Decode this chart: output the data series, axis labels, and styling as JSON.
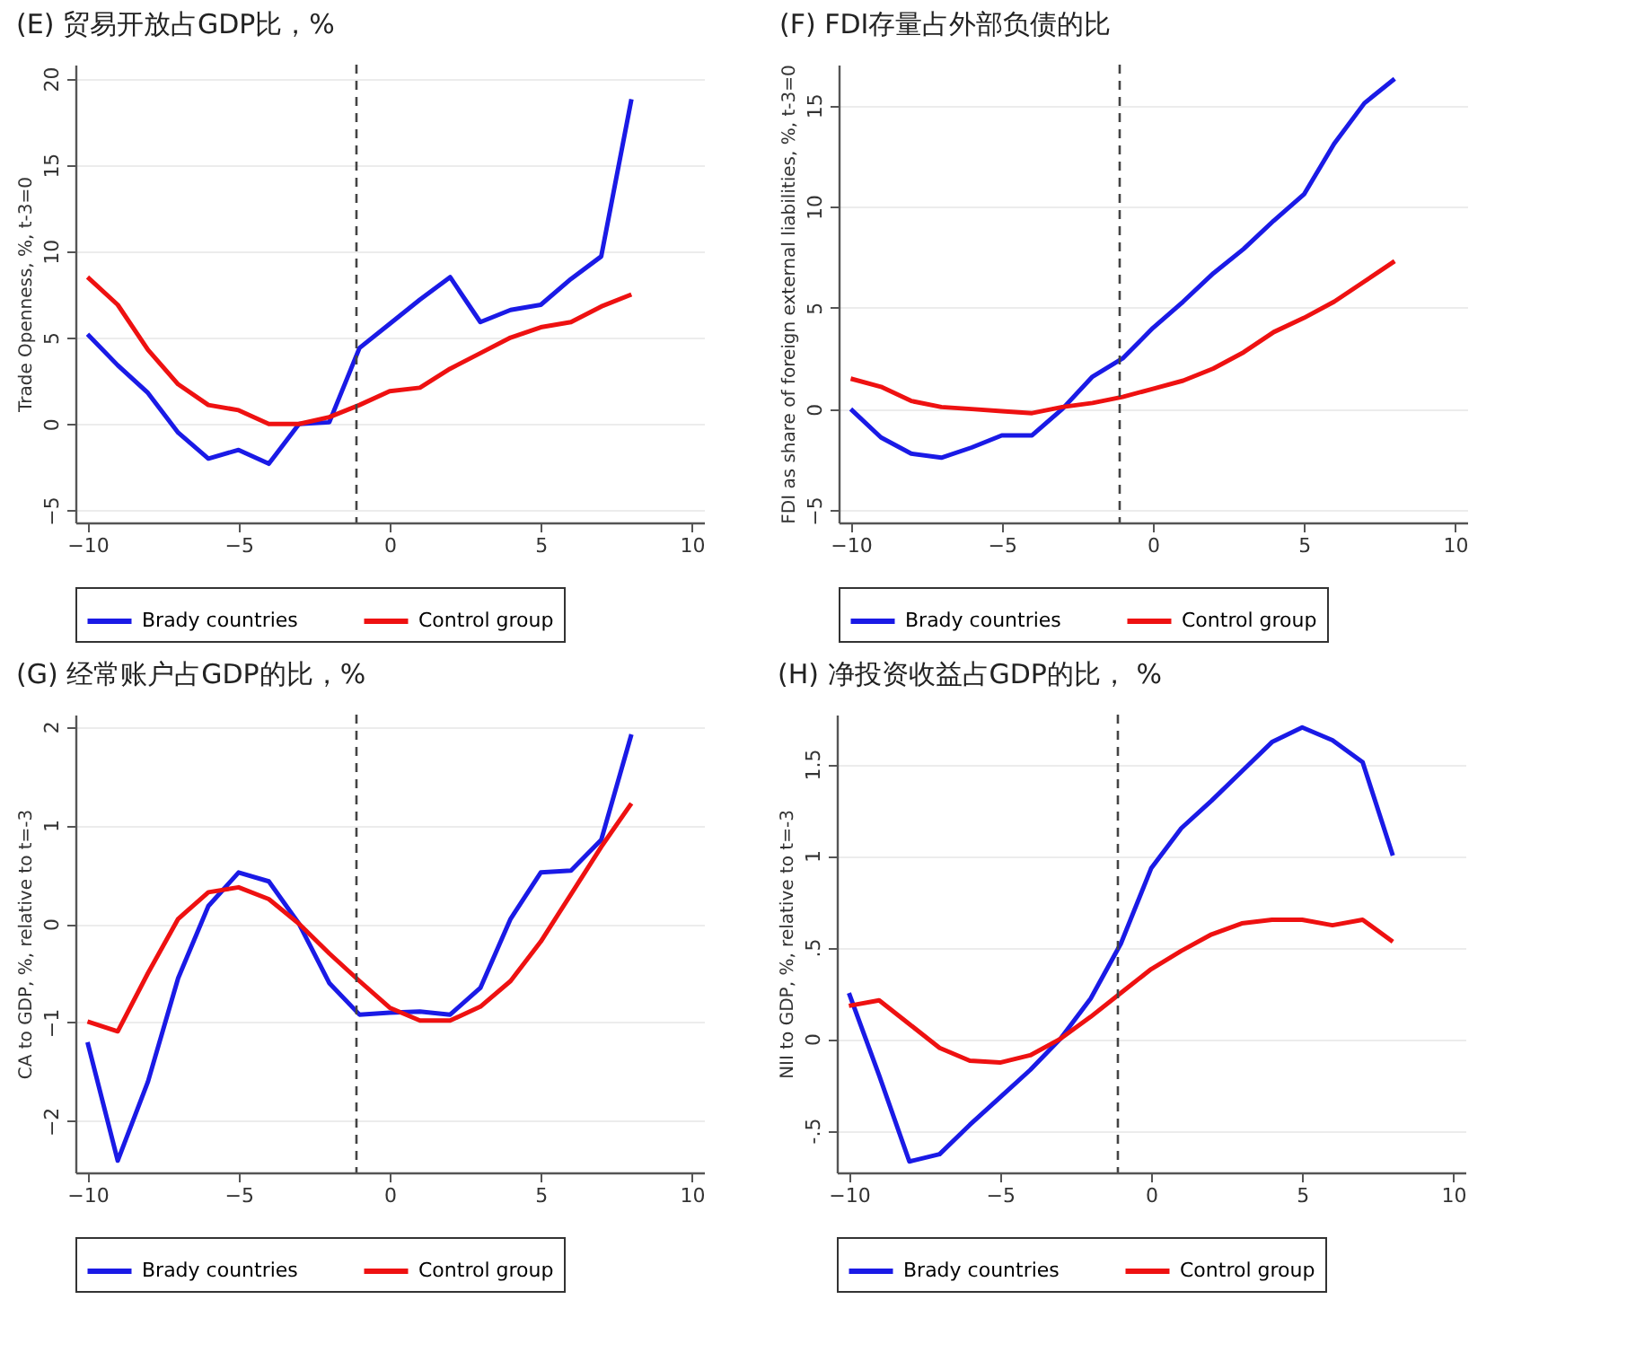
{
  "chart_data": [
    {
      "type": "line",
      "title": "(E) 贸易开放占GDP比，%",
      "ylabel": "Trade Openness, %, t-3=0",
      "x": [
        -10,
        -9,
        -8,
        -7,
        -6,
        -5,
        -4,
        -3,
        -2,
        -1,
        0,
        1,
        2,
        3,
        4,
        5,
        6,
        7,
        8
      ],
      "xlim": [
        -10.4,
        10.4
      ],
      "xticks": [
        -10,
        -5,
        0,
        5,
        10
      ],
      "ylim": [
        -5.7,
        20.8
      ],
      "yticks": [
        -5,
        0,
        5,
        10,
        15,
        20
      ],
      "grid": "y",
      "legend": "bottom",
      "series": [
        {
          "name": "Brady countries",
          "color": "#1a1ae6",
          "values": [
            5.2,
            3.4,
            1.8,
            -0.5,
            -2.0,
            -1.5,
            -2.3,
            0.0,
            0.1,
            4.4,
            5.8,
            7.2,
            8.5,
            5.9,
            6.6,
            6.9,
            8.4,
            9.7,
            18.8
          ]
        },
        {
          "name": "Control group",
          "color": "#ee1111",
          "values": [
            8.5,
            6.9,
            4.3,
            2.3,
            1.1,
            0.8,
            0.0,
            0.0,
            0.4,
            1.1,
            1.9,
            2.1,
            3.2,
            4.1,
            5.0,
            5.6,
            5.9,
            6.8,
            7.5
          ]
        }
      ],
      "ref_lines": [
        {
          "axis": "x",
          "value": -1.1,
          "label": null,
          "line_style": "dashed"
        }
      ]
    },
    {
      "type": "line",
      "title": "(F) FDI存量占外部负债的比",
      "ylabel": "FDI as share of foreign external liabilities, %, t-3=0",
      "x": [
        -10,
        -9,
        -8,
        -7,
        -6,
        -5,
        -4,
        -3,
        -2,
        -1,
        0,
        1,
        2,
        3,
        4,
        5,
        6,
        7,
        8
      ],
      "xlim": [
        -10.4,
        10.4
      ],
      "xticks": [
        -10,
        -5,
        0,
        5,
        10
      ],
      "ylim": [
        -5.6,
        17
      ],
      "yticks": [
        -5,
        0,
        5,
        10,
        15
      ],
      "grid": "y",
      "legend": "bottom",
      "series": [
        {
          "name": "Brady countries",
          "color": "#1a1ae6",
          "values": [
            0.0,
            -1.4,
            -2.2,
            -2.4,
            -1.9,
            -1.3,
            -1.3,
            0.0,
            1.6,
            2.5,
            4.0,
            5.3,
            6.7,
            7.9,
            9.3,
            10.6,
            13.1,
            15.1,
            16.3
          ]
        },
        {
          "name": "Control group",
          "color": "#ee1111",
          "values": [
            1.5,
            1.1,
            0.4,
            0.1,
            0.0,
            -0.1,
            -0.2,
            0.1,
            0.3,
            0.6,
            1.0,
            1.4,
            2.0,
            2.8,
            3.8,
            4.5,
            5.3,
            6.3,
            7.3
          ]
        }
      ],
      "ref_lines": [
        {
          "axis": "x",
          "value": -1.1,
          "label": null,
          "line_style": "dashed"
        }
      ]
    },
    {
      "type": "line",
      "title": "(G) 经常账户占GDP的比，%",
      "ylabel": "CA to GDP, %, relative to t=-3",
      "x": [
        -10,
        -9,
        -8,
        -7,
        -6,
        -5,
        -4,
        -3,
        -2,
        -1,
        0,
        1,
        2,
        3,
        4,
        5,
        6,
        7,
        8
      ],
      "xlim": [
        -10.4,
        10.4
      ],
      "xticks": [
        -10,
        -5,
        0,
        5,
        10
      ],
      "ylim": [
        -2.52,
        2.12
      ],
      "yticks": [
        -2,
        -1,
        0,
        1,
        2
      ],
      "grid": "y",
      "legend": "bottom",
      "series": [
        {
          "name": "Brady countries",
          "color": "#1a1ae6",
          "values": [
            -1.2,
            -2.4,
            -1.6,
            -0.55,
            0.18,
            0.52,
            0.43,
            0.0,
            -0.6,
            -0.92,
            -0.9,
            -0.89,
            -0.92,
            -0.65,
            0.05,
            0.52,
            0.54,
            0.85,
            1.92
          ]
        },
        {
          "name": "Control group",
          "color": "#ee1111",
          "values": [
            -0.99,
            -1.09,
            -0.5,
            0.05,
            0.32,
            0.37,
            0.25,
            0.0,
            -0.3,
            -0.58,
            -0.85,
            -0.98,
            -0.98,
            -0.84,
            -0.58,
            -0.18,
            0.3,
            0.78,
            1.22
          ]
        }
      ],
      "ref_lines": [
        {
          "axis": "x",
          "value": -1.1,
          "label": null,
          "line_style": "dashed"
        }
      ]
    },
    {
      "type": "line",
      "title": "(H)   净投资收益占GDP的比， %",
      "ylabel": "NII to GDP, %, relative to t=-3",
      "x": [
        -10,
        -9,
        -8,
        -7,
        -6,
        -5,
        -4,
        -3,
        -2,
        -1,
        0,
        1,
        2,
        3,
        4,
        5,
        6,
        7,
        8
      ],
      "xlim": [
        -10.4,
        10.4
      ],
      "xticks": [
        -10,
        -5,
        0,
        5,
        10
      ],
      "ylim": [
        -0.73,
        1.77
      ],
      "yticks": [
        {
          "value": -0.5,
          "label": "-.5"
        },
        0,
        {
          "value": 0.5,
          "label": ".5"
        },
        1,
        1.5
      ],
      "grid": "y",
      "legend": "bottom",
      "series": [
        {
          "name": "Brady countries",
          "color": "#1a1ae6",
          "values": [
            0.25,
            -0.2,
            -0.67,
            -0.63,
            -0.47,
            -0.32,
            -0.17,
            0.0,
            0.22,
            0.52,
            0.93,
            1.15,
            1.3,
            1.46,
            1.62,
            1.7,
            1.63,
            1.51,
            1.0
          ]
        },
        {
          "name": "Control group",
          "color": "#ee1111",
          "values": [
            0.18,
            0.21,
            0.08,
            -0.05,
            -0.12,
            -0.13,
            -0.09,
            0.0,
            0.12,
            0.25,
            0.38,
            0.48,
            0.57,
            0.63,
            0.65,
            0.65,
            0.62,
            0.65,
            0.53
          ]
        }
      ],
      "ref_lines": [
        {
          "axis": "x",
          "value": -1.1,
          "label": null,
          "line_style": "dashed"
        }
      ]
    }
  ]
}
